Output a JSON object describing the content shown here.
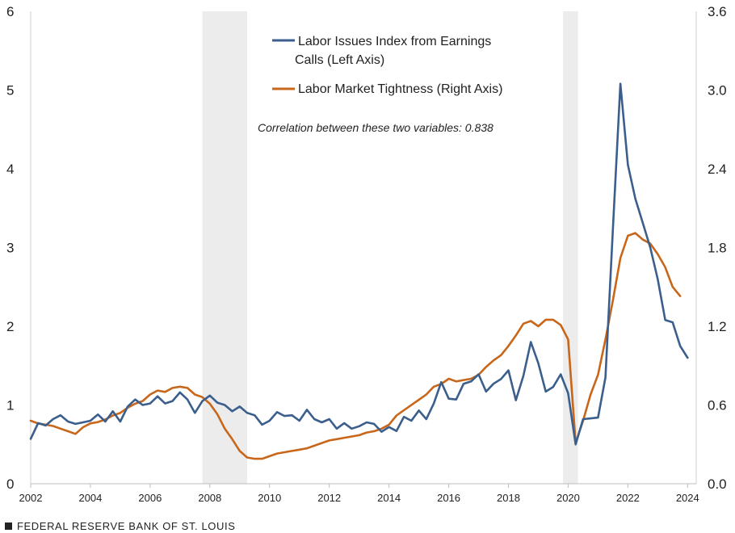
{
  "chart_data": {
    "type": "line",
    "title": "",
    "annotation": "Correlation between these two variables: 0.838",
    "x_ticks": [
      "2002",
      "2004",
      "2006",
      "2008",
      "2010",
      "2012",
      "2014",
      "2016",
      "2018",
      "2020",
      "2022",
      "2024"
    ],
    "x_range": [
      2002.0,
      2024.1
    ],
    "left_axis": {
      "ticks": [
        "0",
        "1",
        "2",
        "3",
        "4",
        "5",
        "6"
      ],
      "ylim": [
        0,
        6
      ]
    },
    "right_axis": {
      "ticks": [
        "0.0",
        "0.6",
        "1.2",
        "1.8",
        "2.4",
        "3.0",
        "3.6"
      ],
      "ylim": [
        0,
        3.6
      ]
    },
    "recessions": [
      [
        2007.75,
        2009.25
      ],
      [
        2019.83,
        2020.33
      ]
    ],
    "recession_color": "#ececec",
    "series": [
      {
        "name": "Labor Issues Index from Earnings Calls (Left Axis)",
        "axis": "left",
        "color": "#3b5f8c",
        "points": [
          [
            2002.0,
            0.57
          ],
          [
            2002.25,
            0.77
          ],
          [
            2002.5,
            0.74
          ],
          [
            2002.75,
            0.82
          ],
          [
            2003.0,
            0.87
          ],
          [
            2003.25,
            0.79
          ],
          [
            2003.5,
            0.76
          ],
          [
            2003.75,
            0.78
          ],
          [
            2004.0,
            0.8
          ],
          [
            2004.25,
            0.88
          ],
          [
            2004.5,
            0.79
          ],
          [
            2004.75,
            0.92
          ],
          [
            2005.0,
            0.79
          ],
          [
            2005.25,
            0.98
          ],
          [
            2005.5,
            1.07
          ],
          [
            2005.75,
            1.0
          ],
          [
            2006.0,
            1.02
          ],
          [
            2006.25,
            1.11
          ],
          [
            2006.5,
            1.02
          ],
          [
            2006.75,
            1.05
          ],
          [
            2007.0,
            1.16
          ],
          [
            2007.25,
            1.07
          ],
          [
            2007.5,
            0.9
          ],
          [
            2007.75,
            1.05
          ],
          [
            2008.0,
            1.12
          ],
          [
            2008.25,
            1.03
          ],
          [
            2008.5,
            1.0
          ],
          [
            2008.75,
            0.92
          ],
          [
            2009.0,
            0.98
          ],
          [
            2009.25,
            0.9
          ],
          [
            2009.5,
            0.87
          ],
          [
            2009.75,
            0.75
          ],
          [
            2010.0,
            0.8
          ],
          [
            2010.25,
            0.91
          ],
          [
            2010.5,
            0.86
          ],
          [
            2010.75,
            0.87
          ],
          [
            2011.0,
            0.8
          ],
          [
            2011.25,
            0.94
          ],
          [
            2011.5,
            0.82
          ],
          [
            2011.75,
            0.78
          ],
          [
            2012.0,
            0.82
          ],
          [
            2012.25,
            0.7
          ],
          [
            2012.5,
            0.77
          ],
          [
            2012.75,
            0.7
          ],
          [
            2013.0,
            0.73
          ],
          [
            2013.25,
            0.78
          ],
          [
            2013.5,
            0.76
          ],
          [
            2013.75,
            0.66
          ],
          [
            2014.0,
            0.72
          ],
          [
            2014.25,
            0.67
          ],
          [
            2014.5,
            0.85
          ],
          [
            2014.75,
            0.8
          ],
          [
            2015.0,
            0.93
          ],
          [
            2015.25,
            0.82
          ],
          [
            2015.5,
            1.02
          ],
          [
            2015.75,
            1.29
          ],
          [
            2016.0,
            1.08
          ],
          [
            2016.25,
            1.07
          ],
          [
            2016.5,
            1.27
          ],
          [
            2016.75,
            1.3
          ],
          [
            2017.0,
            1.39
          ],
          [
            2017.25,
            1.17
          ],
          [
            2017.5,
            1.27
          ],
          [
            2017.75,
            1.33
          ],
          [
            2018.0,
            1.44
          ],
          [
            2018.25,
            1.06
          ],
          [
            2018.5,
            1.37
          ],
          [
            2018.75,
            1.8
          ],
          [
            2019.0,
            1.53
          ],
          [
            2019.25,
            1.17
          ],
          [
            2019.5,
            1.23
          ],
          [
            2019.75,
            1.39
          ],
          [
            2020.0,
            1.15
          ],
          [
            2020.25,
            0.5
          ],
          [
            2020.5,
            0.82
          ],
          [
            2020.75,
            0.83
          ],
          [
            2021.0,
            0.84
          ],
          [
            2021.25,
            1.35
          ],
          [
            2021.5,
            3.25
          ],
          [
            2021.75,
            5.08
          ],
          [
            2022.0,
            4.05
          ],
          [
            2022.25,
            3.62
          ],
          [
            2022.5,
            3.31
          ],
          [
            2022.75,
            3.0
          ],
          [
            2023.0,
            2.6
          ],
          [
            2023.25,
            2.08
          ],
          [
            2023.5,
            2.05
          ],
          [
            2023.75,
            1.75
          ],
          [
            2024.0,
            1.6
          ]
        ]
      },
      {
        "name": "Labor Market Tightness (Right Axis)",
        "axis": "right",
        "color": "#c8661a",
        "points": [
          [
            2002.0,
            0.48
          ],
          [
            2002.25,
            0.46
          ],
          [
            2002.5,
            0.45
          ],
          [
            2002.75,
            0.44
          ],
          [
            2003.0,
            0.42
          ],
          [
            2003.25,
            0.4
          ],
          [
            2003.5,
            0.38
          ],
          [
            2003.75,
            0.43
          ],
          [
            2004.0,
            0.46
          ],
          [
            2004.25,
            0.47
          ],
          [
            2004.5,
            0.49
          ],
          [
            2004.75,
            0.52
          ],
          [
            2005.0,
            0.54
          ],
          [
            2005.25,
            0.58
          ],
          [
            2005.5,
            0.61
          ],
          [
            2005.75,
            0.63
          ],
          [
            2006.0,
            0.68
          ],
          [
            2006.25,
            0.71
          ],
          [
            2006.5,
            0.7
          ],
          [
            2006.75,
            0.73
          ],
          [
            2007.0,
            0.74
          ],
          [
            2007.25,
            0.73
          ],
          [
            2007.5,
            0.68
          ],
          [
            2007.75,
            0.66
          ],
          [
            2008.0,
            0.61
          ],
          [
            2008.25,
            0.53
          ],
          [
            2008.5,
            0.42
          ],
          [
            2008.75,
            0.34
          ],
          [
            2009.0,
            0.25
          ],
          [
            2009.25,
            0.2
          ],
          [
            2009.5,
            0.19
          ],
          [
            2009.75,
            0.19
          ],
          [
            2010.0,
            0.21
          ],
          [
            2010.25,
            0.23
          ],
          [
            2010.5,
            0.24
          ],
          [
            2010.75,
            0.25
          ],
          [
            2011.0,
            0.26
          ],
          [
            2011.25,
            0.27
          ],
          [
            2011.5,
            0.29
          ],
          [
            2011.75,
            0.31
          ],
          [
            2012.0,
            0.33
          ],
          [
            2012.25,
            0.34
          ],
          [
            2012.5,
            0.35
          ],
          [
            2012.75,
            0.36
          ],
          [
            2013.0,
            0.37
          ],
          [
            2013.25,
            0.39
          ],
          [
            2013.5,
            0.4
          ],
          [
            2013.75,
            0.42
          ],
          [
            2014.0,
            0.45
          ],
          [
            2014.25,
            0.52
          ],
          [
            2014.5,
            0.56
          ],
          [
            2014.75,
            0.6
          ],
          [
            2015.0,
            0.64
          ],
          [
            2015.25,
            0.68
          ],
          [
            2015.5,
            0.74
          ],
          [
            2015.75,
            0.76
          ],
          [
            2016.0,
            0.8
          ],
          [
            2016.25,
            0.78
          ],
          [
            2016.5,
            0.79
          ],
          [
            2016.75,
            0.8
          ],
          [
            2017.0,
            0.83
          ],
          [
            2017.25,
            0.89
          ],
          [
            2017.5,
            0.94
          ],
          [
            2017.75,
            0.98
          ],
          [
            2018.0,
            1.05
          ],
          [
            2018.25,
            1.13
          ],
          [
            2018.5,
            1.22
          ],
          [
            2018.75,
            1.24
          ],
          [
            2019.0,
            1.2
          ],
          [
            2019.25,
            1.25
          ],
          [
            2019.5,
            1.25
          ],
          [
            2019.75,
            1.21
          ],
          [
            2020.0,
            1.1
          ],
          [
            2020.25,
            0.31
          ],
          [
            2020.5,
            0.48
          ],
          [
            2020.75,
            0.68
          ],
          [
            2021.0,
            0.83
          ],
          [
            2021.25,
            1.1
          ],
          [
            2021.5,
            1.4
          ],
          [
            2021.75,
            1.72
          ],
          [
            2022.0,
            1.89
          ],
          [
            2022.25,
            1.91
          ],
          [
            2022.5,
            1.86
          ],
          [
            2022.75,
            1.83
          ],
          [
            2023.0,
            1.75
          ],
          [
            2023.25,
            1.65
          ],
          [
            2023.5,
            1.5
          ],
          [
            2023.75,
            1.43
          ]
        ]
      }
    ]
  },
  "footer": {
    "text": "FEDERAL RESERVE BANK OF ST. LOUIS"
  }
}
